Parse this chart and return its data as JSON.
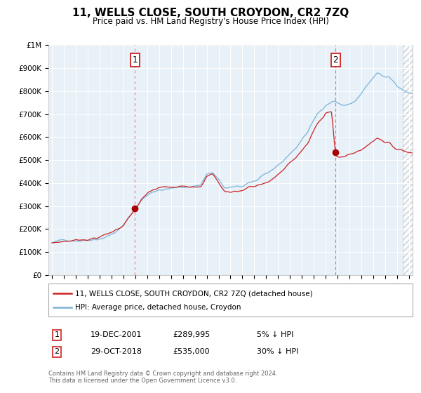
{
  "title": "11, WELLS CLOSE, SOUTH CROYDON, CR2 7ZQ",
  "subtitle": "Price paid vs. HM Land Registry's House Price Index (HPI)",
  "background_color": "#e8f0f8",
  "hpi_color": "#7ab3d8",
  "price_color": "#cc2222",
  "sale1_x": 2001.97,
  "sale1_y": 289995,
  "sale2_x": 2018.83,
  "sale2_y": 535000,
  "legend1": "11, WELLS CLOSE, SOUTH CROYDON, CR2 7ZQ (detached house)",
  "legend2": "HPI: Average price, detached house, Croydon",
  "ann1_date": "19-DEC-2001",
  "ann1_price": "£289,995",
  "ann1_pct": "5% ↓ HPI",
  "ann2_date": "29-OCT-2018",
  "ann2_price": "£535,000",
  "ann2_pct": "30% ↓ HPI",
  "footer": "Contains HM Land Registry data © Crown copyright and database right 2024.\nThis data is licensed under the Open Government Licence v3.0.",
  "ylim": [
    0,
    1000000
  ],
  "xlim": [
    1994.7,
    2025.3
  ],
  "yticks": [
    0,
    100000,
    200000,
    300000,
    400000,
    500000,
    600000,
    700000,
    800000,
    900000,
    1000000
  ],
  "ytick_labels": [
    "£0",
    "£100K",
    "£200K",
    "£300K",
    "£400K",
    "£500K",
    "£600K",
    "£700K",
    "£800K",
    "£900K",
    "£1M"
  ],
  "xtick_years": [
    1995,
    1996,
    1997,
    1998,
    1999,
    2000,
    2001,
    2002,
    2003,
    2004,
    2005,
    2006,
    2007,
    2008,
    2009,
    2010,
    2011,
    2012,
    2013,
    2014,
    2015,
    2016,
    2017,
    2018,
    2019,
    2020,
    2021,
    2022,
    2023,
    2024,
    2025
  ],
  "hatch_start": 2024.5
}
